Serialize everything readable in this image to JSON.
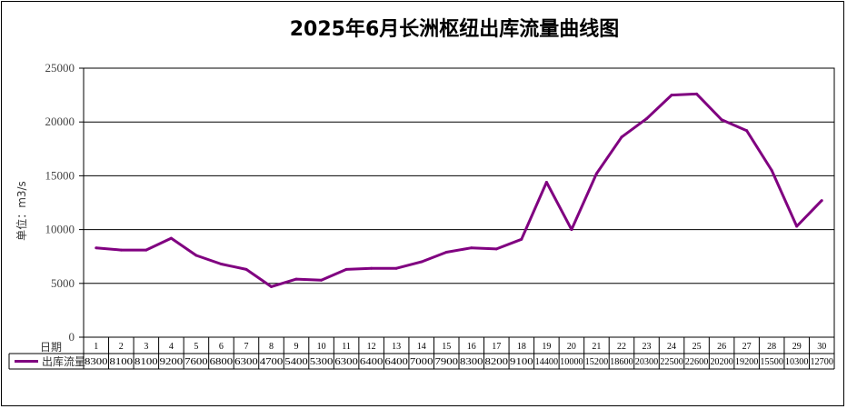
{
  "chart_data": {
    "type": "line",
    "title": "2025年6月长洲枢纽出库流量曲线图",
    "ylabel": "单位：m3/s",
    "table_header": "日期",
    "ylim": [
      0,
      25000
    ],
    "yticks": [
      0,
      5000,
      10000,
      15000,
      20000,
      25000
    ],
    "grid": true,
    "categories": [
      "1",
      "2",
      "3",
      "4",
      "5",
      "6",
      "7",
      "8",
      "9",
      "10",
      "11",
      "12",
      "13",
      "14",
      "15",
      "16",
      "17",
      "18",
      "19",
      "20",
      "21",
      "22",
      "23",
      "24",
      "25",
      "26",
      "27",
      "28",
      "29",
      "30"
    ],
    "series": [
      {
        "name": "出库流量",
        "color": "#800080",
        "values": [
          8300,
          8100,
          8100,
          9200,
          7600,
          6800,
          6300,
          4700,
          5400,
          5300,
          6300,
          6400,
          6400,
          7000,
          7900,
          8300,
          8200,
          9100,
          14400,
          10000,
          15200,
          18600,
          20300,
          22500,
          22600,
          20200,
          19200,
          15500,
          10300,
          12700
        ]
      }
    ]
  }
}
